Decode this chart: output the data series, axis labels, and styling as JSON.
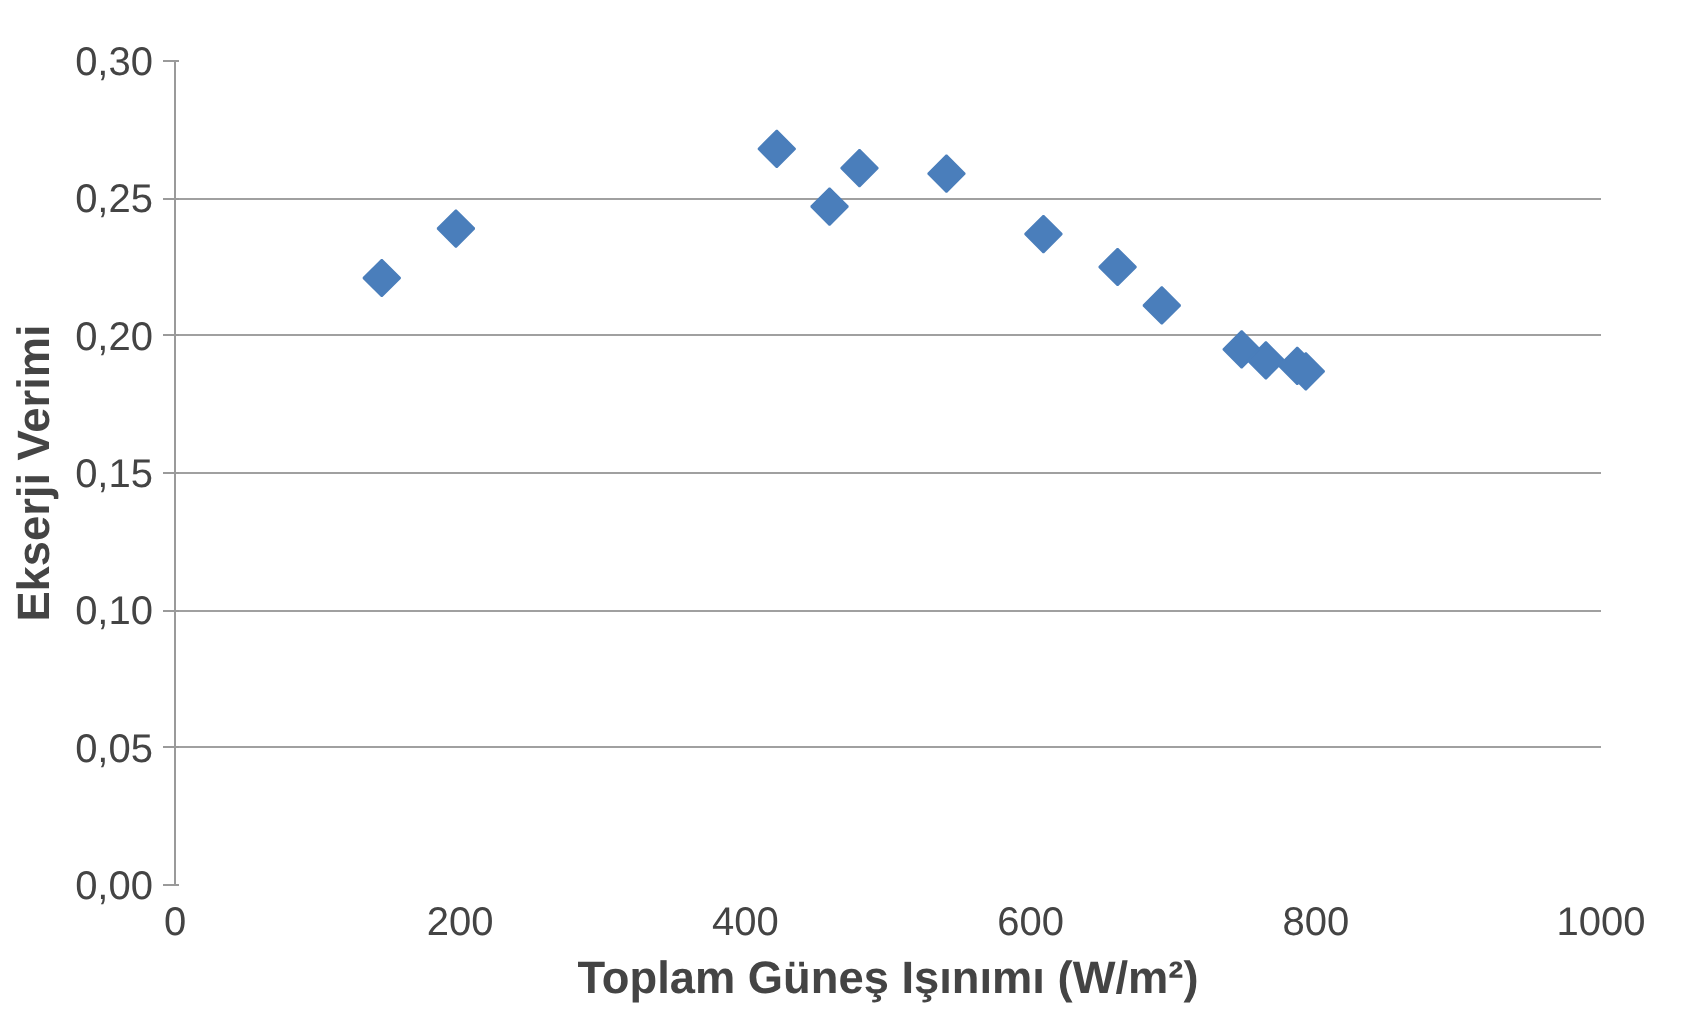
{
  "chart_data": {
    "type": "scatter",
    "xlabel": "Toplam Güneş Işınımı (W/m²)",
    "ylabel": "Ekserji Verimi",
    "x": [
      145,
      197,
      422,
      459,
      480,
      541,
      609,
      661,
      692,
      748,
      765,
      787,
      793
    ],
    "series": [
      {
        "color": "#4a7ebb",
        "values": [
          0.221,
          0.239,
          0.268,
          0.247,
          0.261,
          0.259,
          0.237,
          0.225,
          0.211,
          0.195,
          0.191,
          0.189,
          0.187
        ]
      }
    ],
    "xlim": [
      0,
      1000
    ],
    "xticks": [
      0,
      200,
      400,
      600,
      800,
      1000
    ],
    "ylim": [
      0,
      0.3
    ],
    "yticks": [
      {
        "value": 0,
        "label": "0,00"
      },
      {
        "value": 0.05,
        "label": "0,05"
      },
      {
        "value": 0.1,
        "label": "0,10"
      },
      {
        "value": 0.15,
        "label": "0,15"
      },
      {
        "value": 0.2,
        "label": "0,20"
      },
      {
        "value": 0.25,
        "label": "0,25"
      },
      {
        "value": 0.3,
        "label": "0,30"
      }
    ],
    "grid": "y",
    "marker": "diamond"
  }
}
